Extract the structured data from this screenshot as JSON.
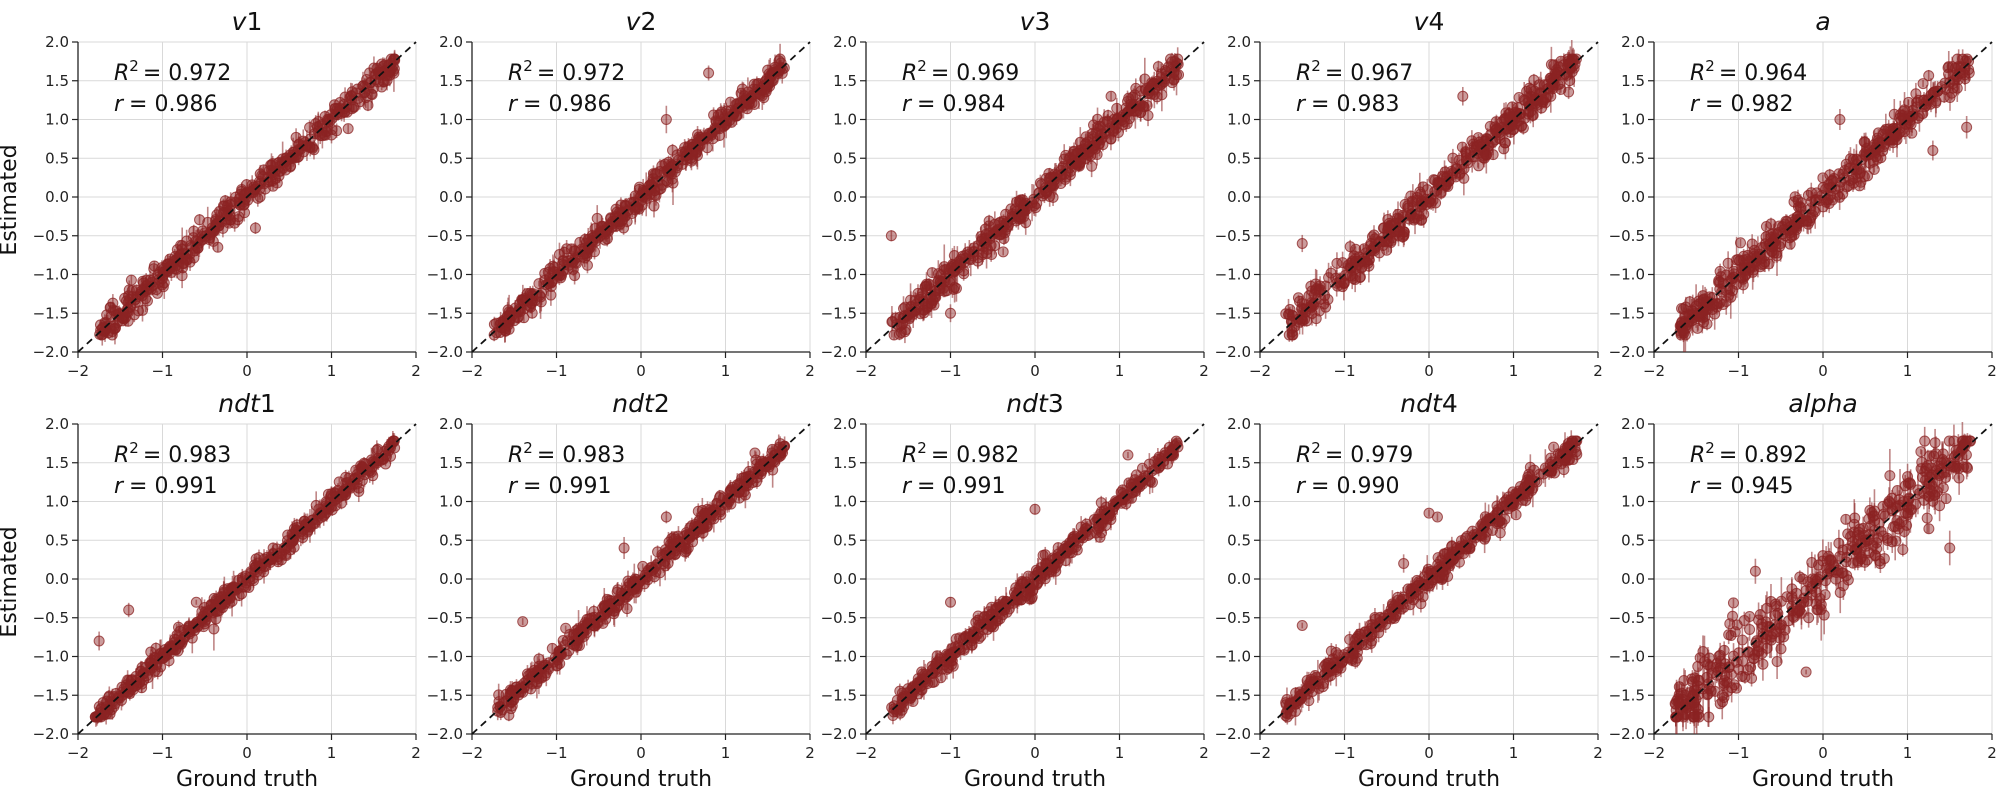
{
  "figure": {
    "row_ylabel": "Estimated",
    "col_xlabel": "Ground truth",
    "marker_color": "#8b2323",
    "diagonal_style": "dashed-black"
  },
  "chart_data": [
    {
      "type": "scatter",
      "param": "v",
      "sub": "1",
      "r2_label": "R",
      "r2_value": "= 0.972",
      "r_label": "r",
      "r_value": "= 0.986",
      "xlim": [
        -2,
        2
      ],
      "ylim": [
        -2,
        2
      ],
      "xticks": [
        "−2",
        "−1",
        "0",
        "1",
        "2"
      ],
      "yticks": [
        "−2.0",
        "−1.5",
        "−1.0",
        "−0.5",
        "0.0",
        "0.5",
        "1.0",
        "1.5",
        "2.0"
      ],
      "range": [
        -1.75,
        1.75
      ],
      "noise": 0.09,
      "err": 0.07,
      "outliers": [
        [
          1.0,
          0.8
        ],
        [
          0.1,
          -0.4
        ]
      ]
    },
    {
      "type": "scatter",
      "param": "v",
      "sub": "2",
      "r2_label": "R",
      "r2_value": "= 0.972",
      "r_label": "r",
      "r_value": "= 0.986",
      "xlim": [
        -2,
        2
      ],
      "ylim": [
        -2,
        2
      ],
      "xticks": [
        "−2",
        "−1",
        "0",
        "1",
        "2"
      ],
      "yticks": [
        "−2.0",
        "−1.5",
        "−1.0",
        "−0.5",
        "0.0",
        "0.5",
        "1.0",
        "1.5",
        "2.0"
      ],
      "range": [
        -1.75,
        1.7
      ],
      "noise": 0.09,
      "err": 0.08,
      "outliers": [
        [
          0.3,
          1.0
        ],
        [
          0.8,
          1.6
        ]
      ]
    },
    {
      "type": "scatter",
      "param": "v",
      "sub": "3",
      "r2_label": "R",
      "r2_value": "= 0.969",
      "r_label": "r",
      "r_value": "= 0.984",
      "xlim": [
        -2,
        2
      ],
      "ylim": [
        -2,
        2
      ],
      "xticks": [
        "−2",
        "−1",
        "0",
        "1",
        "2"
      ],
      "yticks": [
        "−2.0",
        "−1.5",
        "−1.0",
        "−0.5",
        "0.0",
        "0.5",
        "1.0",
        "1.5",
        "2.0"
      ],
      "range": [
        -1.7,
        1.7
      ],
      "noise": 0.1,
      "err": 0.09,
      "outliers": [
        [
          -1.7,
          -0.5
        ],
        [
          -1.0,
          -1.5
        ],
        [
          0.9,
          1.3
        ]
      ]
    },
    {
      "type": "scatter",
      "param": "v",
      "sub": "4",
      "r2_label": "R",
      "r2_value": "= 0.967",
      "r_label": "r",
      "r_value": "= 0.983",
      "xlim": [
        -2,
        2
      ],
      "ylim": [
        -2,
        2
      ],
      "xticks": [
        "−2",
        "−1",
        "0",
        "1",
        "2"
      ],
      "yticks": [
        "−2.0",
        "−1.5",
        "−1.0",
        "−0.5",
        "0.0",
        "0.5",
        "1.0",
        "1.5",
        "2.0"
      ],
      "range": [
        -1.7,
        1.75
      ],
      "noise": 0.11,
      "err": 0.09,
      "outliers": [
        [
          -1.5,
          -0.6
        ],
        [
          0.4,
          1.3
        ],
        [
          1.2,
          1.1
        ]
      ]
    },
    {
      "type": "scatter",
      "param": "a",
      "sub": "",
      "r2_label": "R",
      "r2_value": "= 0.964",
      "r_label": "r",
      "r_value": "= 0.982",
      "xlim": [
        -2,
        2
      ],
      "ylim": [
        -2,
        2
      ],
      "xticks": [
        "−2",
        "−1",
        "0",
        "1",
        "2"
      ],
      "yticks": [
        "−2.0",
        "−1.5",
        "−1.0",
        "−0.5",
        "0.0",
        "0.5",
        "1.0",
        "1.5",
        "2.0"
      ],
      "range": [
        -1.7,
        1.75
      ],
      "noise": 0.12,
      "err": 0.1,
      "outliers": [
        [
          1.7,
          0.9
        ],
        [
          1.3,
          0.6
        ],
        [
          0.2,
          1.0
        ]
      ]
    },
    {
      "type": "scatter",
      "param": "ndt",
      "sub": "1",
      "r2_label": "R",
      "r2_value": "= 0.983",
      "r_label": "r",
      "r_value": "= 0.991",
      "xlim": [
        -2,
        2
      ],
      "ylim": [
        -2,
        2
      ],
      "xticks": [
        "−2",
        "−1",
        "0",
        "1",
        "2"
      ],
      "yticks": [
        "−2.0",
        "−1.5",
        "−1.0",
        "−0.5",
        "0.0",
        "0.5",
        "1.0",
        "1.5",
        "2.0"
      ],
      "range": [
        -1.8,
        1.75
      ],
      "noise": 0.07,
      "err": 0.07,
      "outliers": [
        [
          -1.75,
          -0.8
        ],
        [
          -1.4,
          -0.4
        ],
        [
          -0.6,
          -0.3
        ]
      ]
    },
    {
      "type": "scatter",
      "param": "ndt",
      "sub": "2",
      "r2_label": "R",
      "r2_value": "= 0.983",
      "r_label": "r",
      "r_value": "= 0.991",
      "xlim": [
        -2,
        2
      ],
      "ylim": [
        -2,
        2
      ],
      "xticks": [
        "−2",
        "−1",
        "0",
        "1",
        "2"
      ],
      "yticks": [
        "−2.0",
        "−1.5",
        "−1.0",
        "−0.5",
        "0.0",
        "0.5",
        "1.0",
        "1.5",
        "2.0"
      ],
      "range": [
        -1.7,
        1.7
      ],
      "noise": 0.07,
      "err": 0.07,
      "outliers": [
        [
          -1.4,
          -0.55
        ],
        [
          0.3,
          0.8
        ],
        [
          -0.2,
          0.4
        ]
      ]
    },
    {
      "type": "scatter",
      "param": "ndt",
      "sub": "3",
      "r2_label": "R",
      "r2_value": "= 0.982",
      "r_label": "r",
      "r_value": "= 0.991",
      "xlim": [
        -2,
        2
      ],
      "ylim": [
        -2,
        2
      ],
      "xticks": [
        "−2",
        "−1",
        "0",
        "1",
        "2"
      ],
      "yticks": [
        "−2.0",
        "−1.5",
        "−1.0",
        "−0.5",
        "0.0",
        "0.5",
        "1.0",
        "1.5",
        "2.0"
      ],
      "range": [
        -1.7,
        1.7
      ],
      "noise": 0.07,
      "err": 0.07,
      "outliers": [
        [
          1.1,
          1.6
        ],
        [
          -1.0,
          -0.3
        ],
        [
          0.0,
          0.9
        ]
      ]
    },
    {
      "type": "scatter",
      "param": "ndt",
      "sub": "4",
      "r2_label": "R",
      "r2_value": "= 0.979",
      "r_label": "r",
      "r_value": "= 0.990",
      "xlim": [
        -2,
        2
      ],
      "ylim": [
        -2,
        2
      ],
      "xticks": [
        "−2",
        "−1",
        "0",
        "1",
        "2"
      ],
      "yticks": [
        "−2.0",
        "−1.5",
        "−1.0",
        "−0.5",
        "0.0",
        "0.5",
        "1.0",
        "1.5",
        "2.0"
      ],
      "range": [
        -1.7,
        1.75
      ],
      "noise": 0.08,
      "err": 0.07,
      "outliers": [
        [
          0.0,
          0.85
        ],
        [
          0.1,
          0.8
        ],
        [
          -1.5,
          -0.6
        ],
        [
          -0.3,
          0.2
        ]
      ]
    },
    {
      "type": "scatter",
      "param": "alpha",
      "sub": "",
      "r2_label": "R",
      "r2_value": "= 0.892",
      "r_label": "r",
      "r_value": "= 0.945",
      "xlim": [
        -2,
        2
      ],
      "ylim": [
        -2,
        2
      ],
      "xticks": [
        "−2",
        "−1",
        "0",
        "1",
        "2"
      ],
      "yticks": [
        "−2.0",
        "−1.5",
        "−1.0",
        "−0.5",
        "0.0",
        "0.5",
        "1.0",
        "1.5",
        "2.0"
      ],
      "range": [
        -1.75,
        1.75
      ],
      "noise": 0.22,
      "err": 0.14,
      "outliers": [
        [
          -0.8,
          0.1
        ],
        [
          -0.2,
          -1.2
        ],
        [
          1.5,
          0.4
        ]
      ]
    }
  ]
}
